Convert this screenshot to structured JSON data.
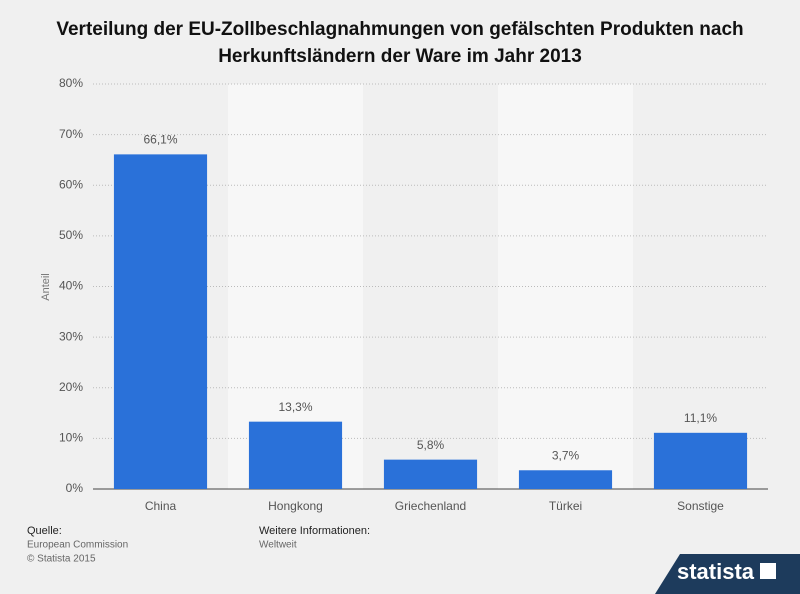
{
  "chart_data": {
    "type": "bar",
    "title": "Verteilung der EU-Zollbeschlagnahmungen von gefälschten Produkten nach",
    "subtitle": "Herkunftsländern der Ware im Jahr 2013",
    "y_label": "Anteil",
    "categories": [
      "China",
      "Hongkong",
      "Griechenland",
      "Türkei",
      "Sonstige"
    ],
    "values": [
      66.1,
      13.3,
      5.8,
      3.7,
      11.1
    ],
    "value_labels": [
      "66,1%",
      "13,3%",
      "5,8%",
      "3,7%",
      "11,1%"
    ],
    "color": "#2a71d9",
    "ylim": [
      0,
      80
    ],
    "yticks": [
      {
        "value": 0,
        "label": "0%"
      },
      {
        "value": 10,
        "label": "10%"
      },
      {
        "value": 20,
        "label": "20%"
      },
      {
        "value": 30,
        "label": "30%"
      },
      {
        "value": 40,
        "label": "40%"
      },
      {
        "value": 50,
        "label": "50%"
      },
      {
        "value": 60,
        "label": "60%"
      },
      {
        "value": 70,
        "label": "70%"
      },
      {
        "value": 80,
        "label": "80%"
      }
    ],
    "grid": true,
    "source_label": "Quelle:",
    "source": "European Commission",
    "copyright": "© Statista 2015",
    "info_label": "Weitere Informationen:",
    "info": "Weltweit",
    "logo": "statista"
  }
}
